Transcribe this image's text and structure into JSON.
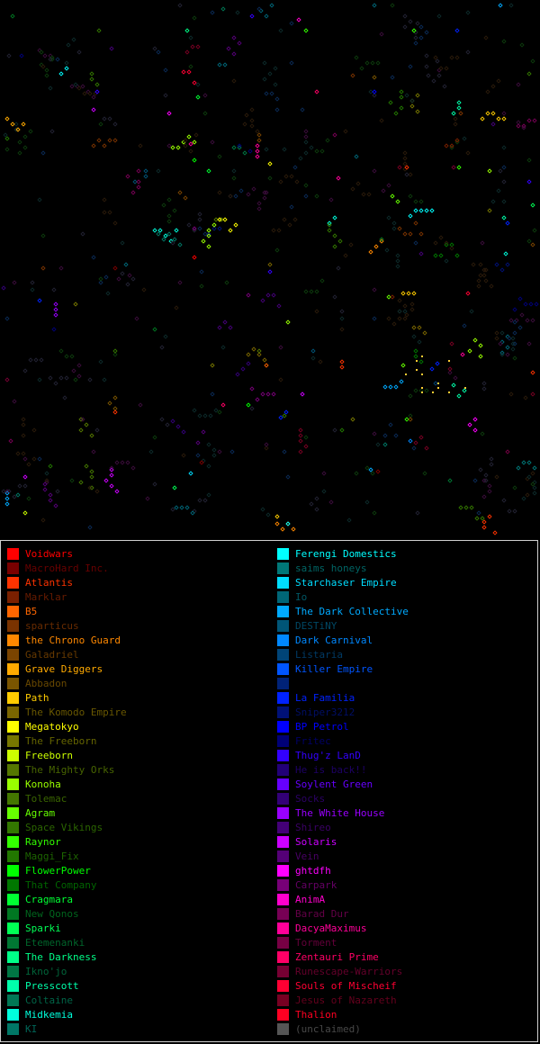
{
  "map": {
    "background": "#000000",
    "marker_shape": "diamond-star"
  },
  "legend": {
    "left": [
      {
        "name": "Voidwars",
        "color": "#ff0000",
        "active": true
      },
      {
        "name": "MacroHard Inc.",
        "color": "#7a0000",
        "active": false
      },
      {
        "name": "Atlantis",
        "color": "#ff3300",
        "active": true
      },
      {
        "name": "Marklar",
        "color": "#7a2000",
        "active": false
      },
      {
        "name": "B5",
        "color": "#ff6600",
        "active": true
      },
      {
        "name": "sparticus",
        "color": "#7a3300",
        "active": false
      },
      {
        "name": "the Chrono Guard",
        "color": "#ff8800",
        "active": true
      },
      {
        "name": "Galadriel",
        "color": "#7a4400",
        "active": false
      },
      {
        "name": "Grave Diggers",
        "color": "#ffaa00",
        "active": true
      },
      {
        "name": "Abbadon",
        "color": "#7a5500",
        "active": false
      },
      {
        "name": "Path",
        "color": "#ffcc00",
        "active": true
      },
      {
        "name": "The Komodo Empire",
        "color": "#7a6600",
        "active": false
      },
      {
        "name": "Megatokyo",
        "color": "#ffff00",
        "active": true
      },
      {
        "name": "The Freeborn",
        "color": "#777700",
        "active": false
      },
      {
        "name": "Freeborn",
        "color": "#ccff00",
        "active": true
      },
      {
        "name": "The Mighty Orks",
        "color": "#557700",
        "active": false
      },
      {
        "name": "Konoha",
        "color": "#99ff00",
        "active": true
      },
      {
        "name": "Tolemac",
        "color": "#447700",
        "active": false
      },
      {
        "name": "Agram",
        "color": "#66ff00",
        "active": true
      },
      {
        "name": "Space Vikings",
        "color": "#337700",
        "active": false
      },
      {
        "name": "Raynor",
        "color": "#33ff00",
        "active": true
      },
      {
        "name": "Maggi_Fix",
        "color": "#227700",
        "active": false
      },
      {
        "name": "FlowerPower",
        "color": "#00ff00",
        "active": true
      },
      {
        "name": "That Company",
        "color": "#007700",
        "active": false
      },
      {
        "name": "Cragmara",
        "color": "#00ff33",
        "active": true
      },
      {
        "name": "New Qonos",
        "color": "#007722",
        "active": false
      },
      {
        "name": "Sparki",
        "color": "#00ff55",
        "active": true
      },
      {
        "name": "Etemenanki",
        "color": "#007733",
        "active": false
      },
      {
        "name": "The Darkness",
        "color": "#00ff88",
        "active": true
      },
      {
        "name": "Ikno'jo",
        "color": "#007744",
        "active": false
      },
      {
        "name": "Presscott",
        "color": "#00ffaa",
        "active": true
      },
      {
        "name": "Coltaine",
        "color": "#007755",
        "active": false
      },
      {
        "name": "Midkemia",
        "color": "#00ffdd",
        "active": true
      },
      {
        "name": "KI",
        "color": "#007766",
        "active": false
      }
    ],
    "right": [
      {
        "name": "Ferengi Domestics",
        "color": "#00ffff",
        "active": true
      },
      {
        "name": "saims honeys",
        "color": "#007777",
        "active": false
      },
      {
        "name": "Starchaser Empire",
        "color": "#00ddff",
        "active": true
      },
      {
        "name": "Io",
        "color": "#006677",
        "active": false
      },
      {
        "name": "The Dark Collective",
        "color": "#00aaff",
        "active": true
      },
      {
        "name": "DESTiNY",
        "color": "#005577",
        "active": false
      },
      {
        "name": "Dark Carnival",
        "color": "#0088ff",
        "active": true
      },
      {
        "name": "Listaria",
        "color": "#004477",
        "active": false
      },
      {
        "name": "Killer Empire",
        "color": "#0055ff",
        "active": true
      },
      {
        "name": "",
        "color": "#002277",
        "active": false
      },
      {
        "name": "La Familia",
        "color": "#0022ff",
        "active": true
      },
      {
        "name": "Sniper3212",
        "color": "#001177",
        "active": false
      },
      {
        "name": "BP Petrol",
        "color": "#0000ff",
        "active": true
      },
      {
        "name": "Fritec",
        "color": "#000077",
        "active": false
      },
      {
        "name": "Thug'z LanD",
        "color": "#3300ff",
        "active": true
      },
      {
        "name": "He is back!!",
        "color": "#220077",
        "active": false
      },
      {
        "name": "Soylent Green",
        "color": "#6600ff",
        "active": true
      },
      {
        "name": "Socks",
        "color": "#330077",
        "active": false
      },
      {
        "name": "The White House",
        "color": "#9900ff",
        "active": true
      },
      {
        "name": "Shireo",
        "color": "#440077",
        "active": false
      },
      {
        "name": "Solaris",
        "color": "#cc00ff",
        "active": true
      },
      {
        "name": "Vein",
        "color": "#550077",
        "active": false
      },
      {
        "name": "ghtdfh",
        "color": "#ff00ff",
        "active": true
      },
      {
        "name": "Carpark",
        "color": "#770077",
        "active": false
      },
      {
        "name": "AnimA",
        "color": "#ff00cc",
        "active": true
      },
      {
        "name": "Barad Dur",
        "color": "#770055",
        "active": false
      },
      {
        "name": "DacyaMaximus",
        "color": "#ff0099",
        "active": true
      },
      {
        "name": "Torment",
        "color": "#770044",
        "active": false
      },
      {
        "name": "Zentauri Prime",
        "color": "#ff0066",
        "active": true
      },
      {
        "name": "Runescape-Warriors",
        "color": "#770033",
        "active": false
      },
      {
        "name": "Souls of Mischeif",
        "color": "#ff0033",
        "active": true
      },
      {
        "name": "Jesus of Nazareth",
        "color": "#770022",
        "active": false
      },
      {
        "name": "Thalion",
        "color": "#ff0022",
        "active": true
      },
      {
        "name": "(unclaimed)",
        "color": "#555555",
        "active": false
      }
    ]
  }
}
